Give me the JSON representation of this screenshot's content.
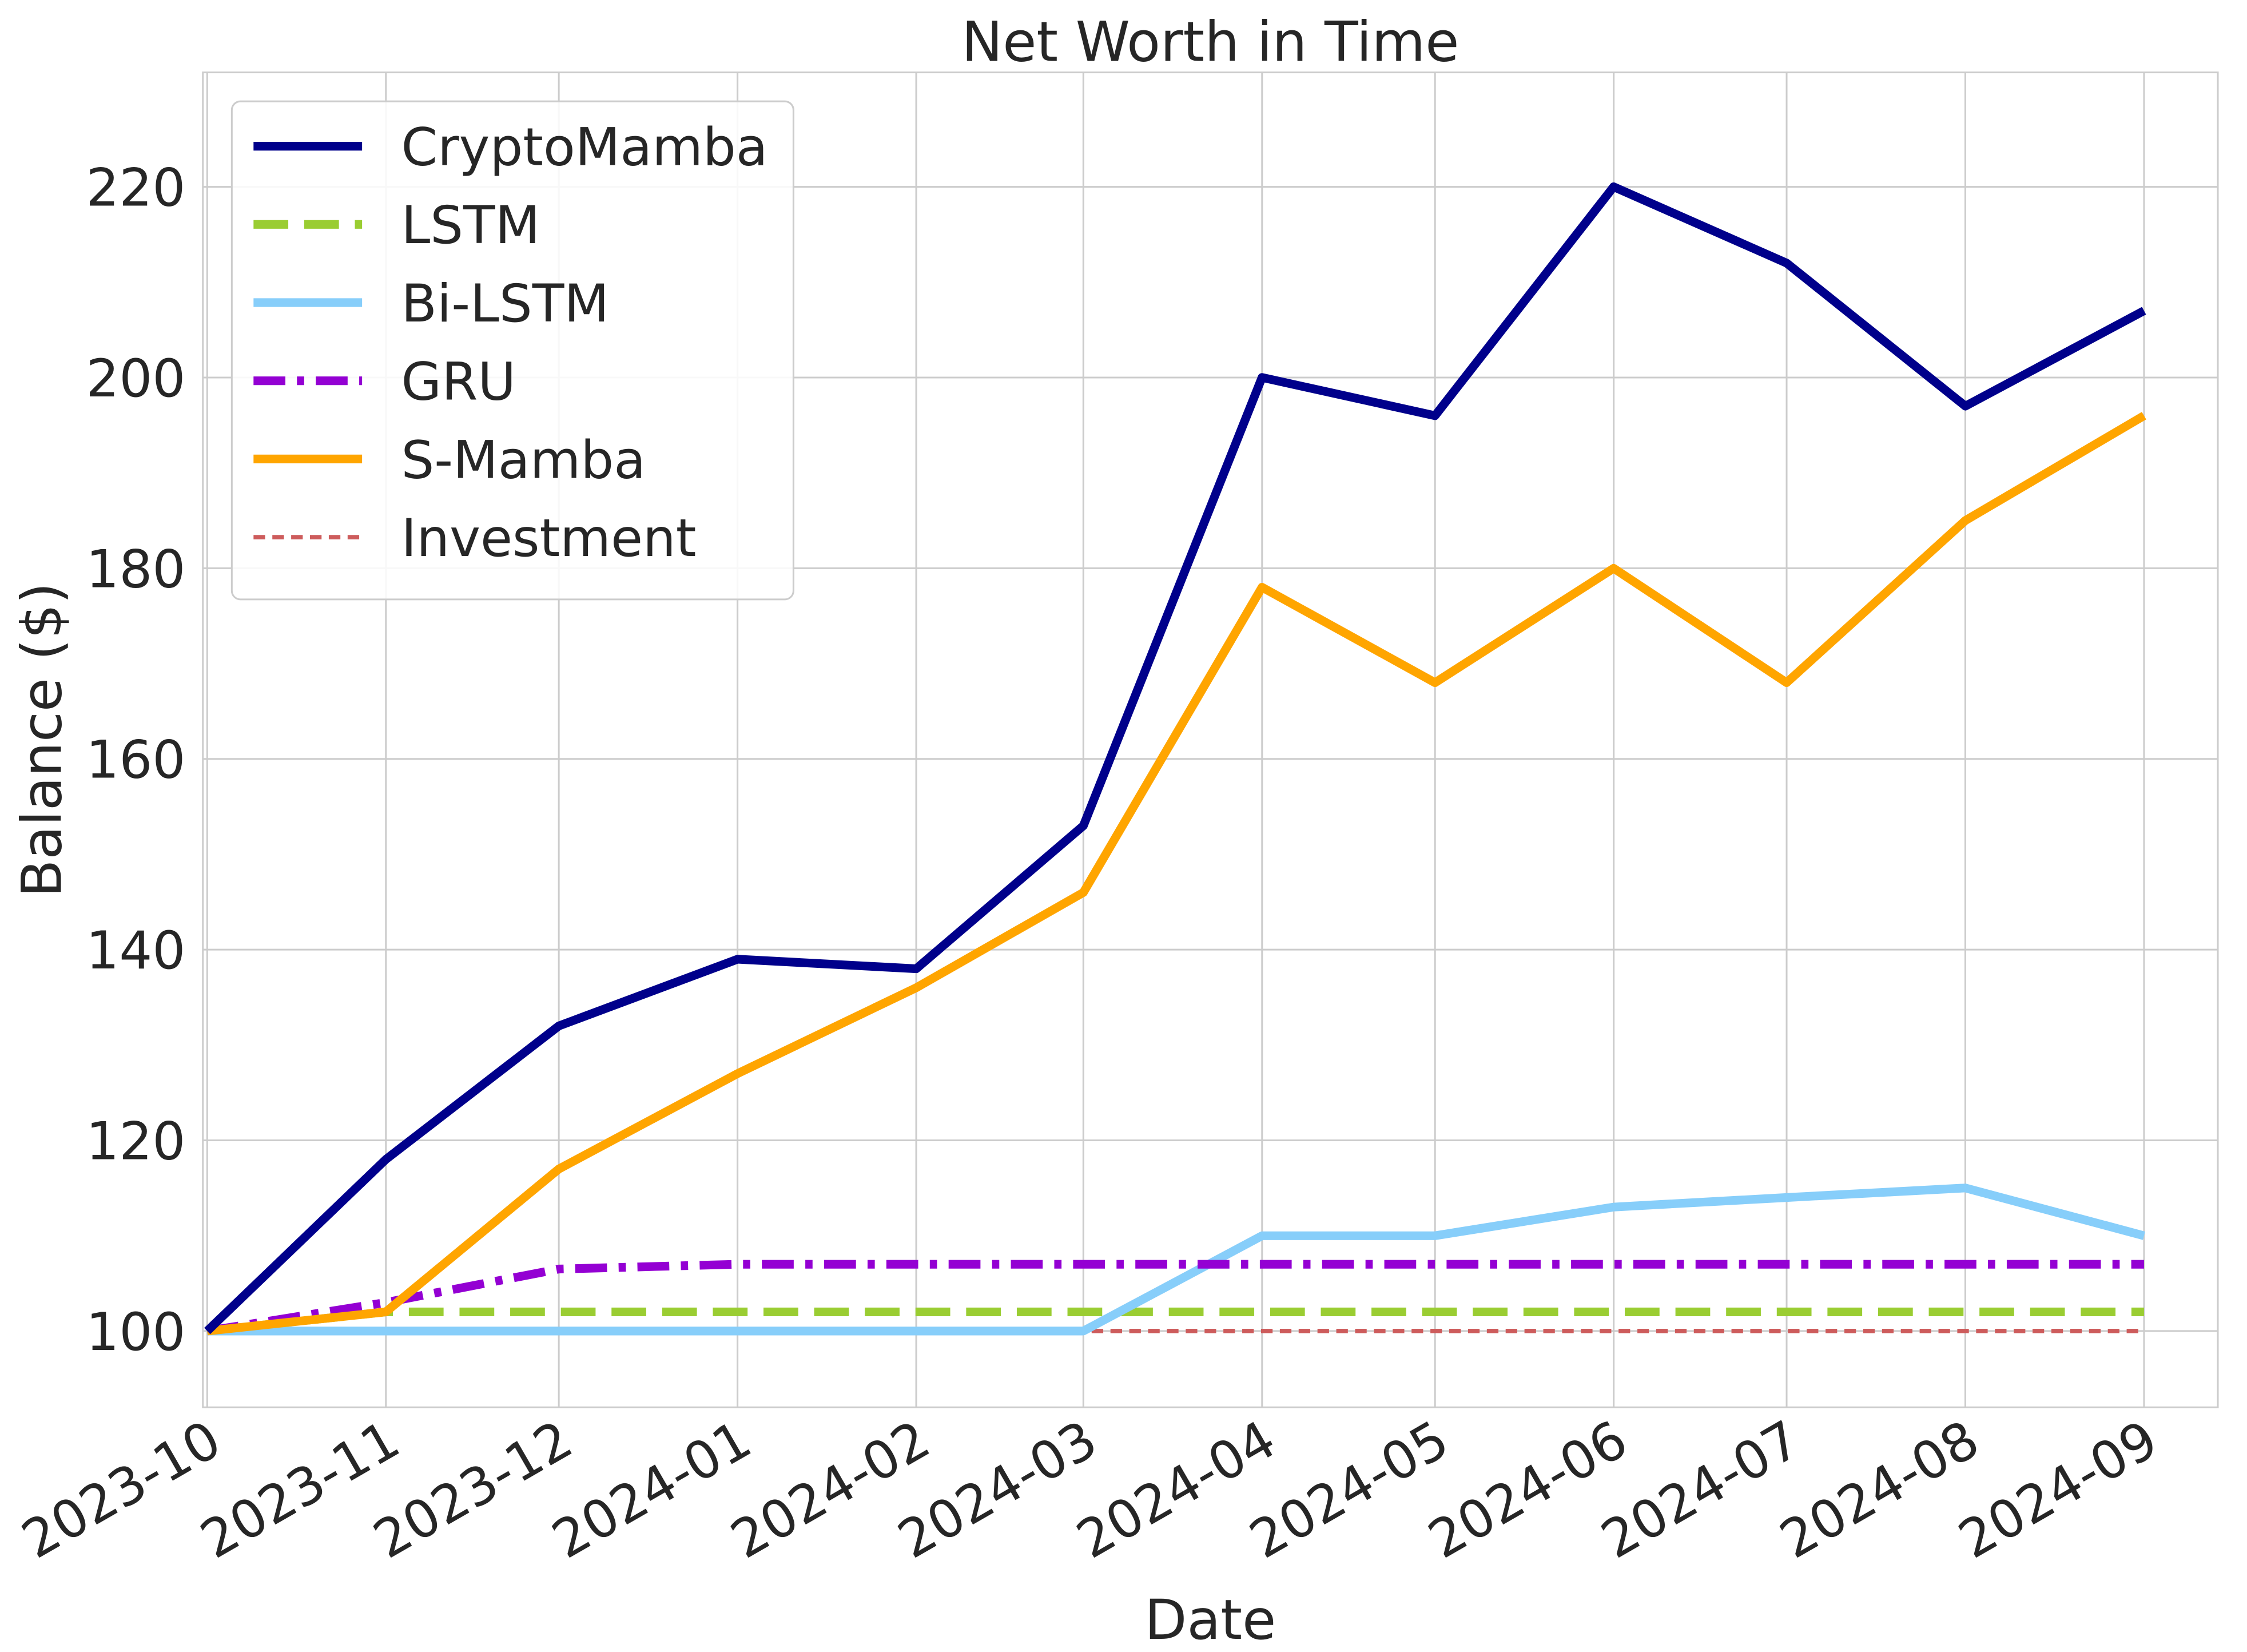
{
  "chart_data": {
    "type": "line",
    "title": "Net Worth in Time",
    "x_label": "Date",
    "y_label": "Balance ($)",
    "x": [
      "2023-10",
      "2023-11",
      "2023-12",
      "2024-01",
      "2024-02",
      "2024-03",
      "2024-04",
      "2024-05",
      "2024-06",
      "2024-07",
      "2024-08",
      "2024-09"
    ],
    "xlim": [
      "2023-10",
      "2024-09"
    ],
    "xticks": [
      "2023-10",
      "2023-11",
      "2023-12",
      "2024-01",
      "2024-02",
      "2024-03",
      "2024-04",
      "2024-05",
      "2024-06",
      "2024-07",
      "2024-08",
      "2024-09"
    ],
    "ylim": [
      92,
      232
    ],
    "yticks": [
      100,
      120,
      140,
      160,
      180,
      200,
      220
    ],
    "grid": true,
    "legend": "upper left",
    "series": [
      {
        "name": "CryptoMamba",
        "color": "#00008b",
        "dash": "solid",
        "values": [
          100,
          118,
          132,
          139,
          138,
          153,
          200,
          196,
          220,
          212,
          197,
          207
        ]
      },
      {
        "name": "LSTM",
        "color": "#9acd32",
        "dash": "dashed",
        "values": [
          100,
          102,
          102,
          102,
          102,
          102,
          102,
          102,
          102,
          102,
          102,
          102
        ]
      },
      {
        "name": "Bi-LSTM",
        "color": "#87cefa",
        "dash": "solid",
        "values": [
          100,
          100,
          100,
          100,
          100,
          100,
          110,
          110,
          113,
          114,
          115,
          110
        ]
      },
      {
        "name": "GRU",
        "color": "#9400d3",
        "dash": "dashdot",
        "values": [
          100,
          103,
          106.5,
          107,
          107,
          107,
          107,
          107,
          107,
          107,
          107,
          107
        ]
      },
      {
        "name": "S-Mamba",
        "color": "#ffa500",
        "dash": "solid",
        "values": [
          100,
          102,
          117,
          127,
          136,
          146,
          178,
          168,
          180,
          168,
          185,
          196
        ]
      },
      {
        "name": "Investment",
        "color": "#cd5c5c",
        "dash": "dotted",
        "values": [
          100,
          100,
          100,
          100,
          100,
          100,
          100,
          100,
          100,
          100,
          100,
          100
        ]
      }
    ]
  }
}
